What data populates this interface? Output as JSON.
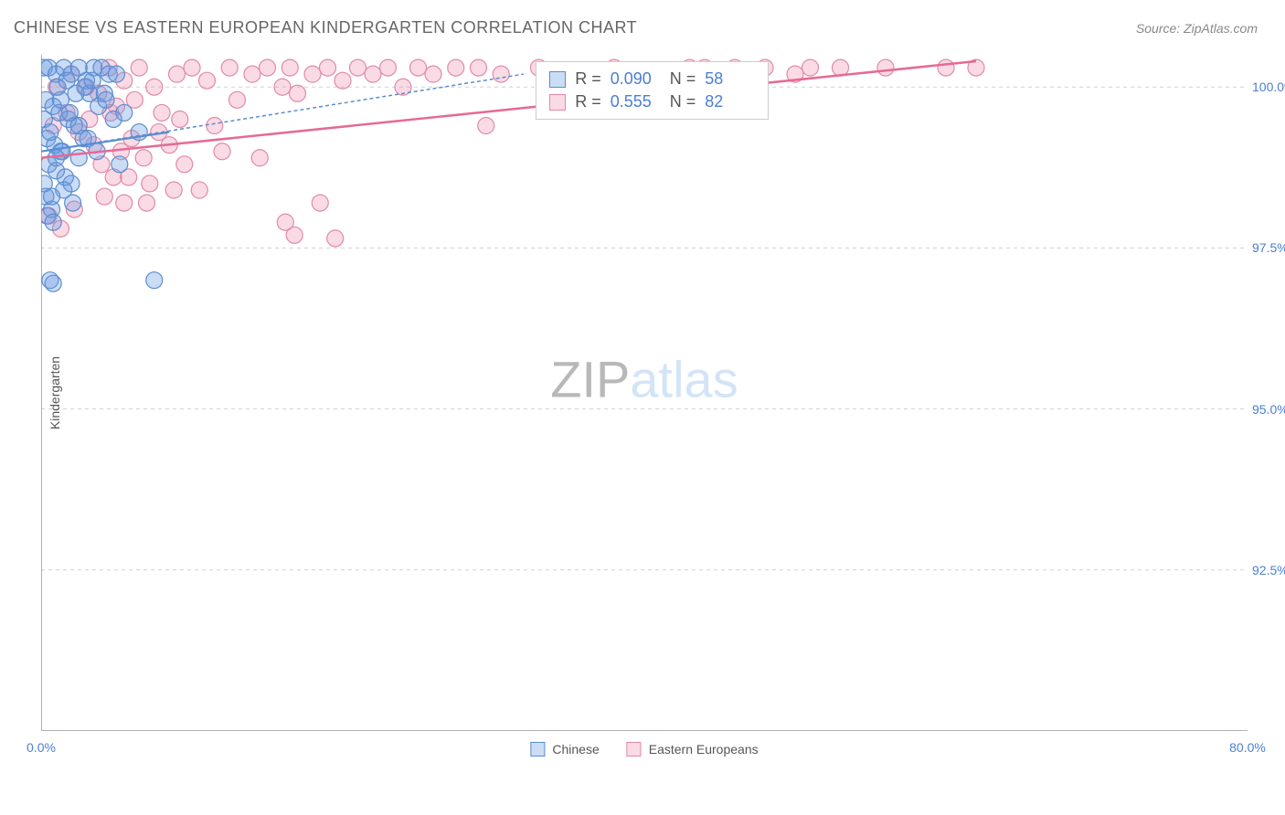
{
  "title": "CHINESE VS EASTERN EUROPEAN KINDERGARTEN CORRELATION CHART",
  "source": "Source: ZipAtlas.com",
  "watermark_zip": "ZIP",
  "watermark_atlas": "atlas",
  "chart": {
    "type": "scatter",
    "ylabel": "Kindergarten",
    "xlim": [
      0,
      80
    ],
    "ylim": [
      90,
      100.5
    ],
    "x_ticks": [
      0,
      10,
      20,
      30,
      40,
      50,
      60,
      70,
      80
    ],
    "x_tick_labels": [
      "0.0%",
      "",
      "",
      "",
      "",
      "",
      "",
      "",
      "80.0%"
    ],
    "y_ticks": [
      92.5,
      95.0,
      97.5,
      100.0
    ],
    "y_tick_labels": [
      "92.5%",
      "95.0%",
      "97.5%",
      "100.0%"
    ],
    "background_color": "#ffffff",
    "grid_color": "#d0d0d0",
    "axis_color": "#999999",
    "marker_radius": 9,
    "marker_stroke_width": 1.2,
    "series": [
      {
        "name": "Chinese",
        "color_fill": "rgba(105,155,225,0.35)",
        "color_stroke": "#5a8dd0",
        "r_value": "0.090",
        "n_value": "58",
        "trend": {
          "x1": 0,
          "y1": 99.0,
          "x2": 32,
          "y2": 100.2,
          "dash": "4 3",
          "stroke": "#5a8dd0",
          "width": 1.5
        },
        "trend_solid": {
          "x1": 0,
          "y1": 99.0,
          "x2": 8.5,
          "y2": 99.3,
          "stroke": "#5a8dd0",
          "width": 2.2
        },
        "points": [
          [
            0.2,
            100.3
          ],
          [
            0.5,
            100.3
          ],
          [
            1.0,
            100.2
          ],
          [
            1.5,
            100.3
          ],
          [
            2.0,
            100.2
          ],
          [
            2.5,
            100.3
          ],
          [
            3.0,
            100.1
          ],
          [
            3.5,
            100.3
          ],
          [
            4.0,
            100.3
          ],
          [
            4.5,
            100.2
          ],
          [
            5.0,
            100.2
          ],
          [
            0.3,
            99.8
          ],
          [
            0.8,
            99.7
          ],
          [
            1.2,
            99.6
          ],
          [
            1.8,
            99.5
          ],
          [
            2.2,
            99.4
          ],
          [
            0.4,
            99.2
          ],
          [
            0.9,
            99.1
          ],
          [
            1.4,
            99.0
          ],
          [
            0.5,
            98.8
          ],
          [
            1.0,
            98.7
          ],
          [
            1.6,
            98.6
          ],
          [
            2.0,
            98.5
          ],
          [
            0.3,
            98.3
          ],
          [
            0.7,
            98.1
          ],
          [
            5.5,
            99.6
          ],
          [
            6.5,
            99.3
          ],
          [
            1.3,
            99.0
          ],
          [
            2.5,
            98.9
          ],
          [
            3.2,
            99.9
          ],
          [
            3.8,
            99.7
          ],
          [
            0.6,
            97.0
          ],
          [
            0.8,
            96.95
          ],
          [
            7.5,
            97.0
          ],
          [
            4.2,
            99.9
          ],
          [
            4.8,
            99.5
          ],
          [
            5.2,
            98.8
          ],
          [
            2.8,
            99.2
          ],
          [
            1.1,
            100.0
          ],
          [
            1.7,
            100.1
          ],
          [
            2.3,
            99.9
          ],
          [
            2.9,
            100.0
          ],
          [
            3.4,
            100.1
          ],
          [
            0.2,
            99.5
          ],
          [
            0.6,
            99.3
          ],
          [
            1.0,
            98.9
          ],
          [
            1.5,
            98.4
          ],
          [
            2.1,
            98.2
          ],
          [
            0.4,
            98.0
          ],
          [
            0.8,
            97.9
          ],
          [
            1.3,
            99.8
          ],
          [
            1.9,
            99.6
          ],
          [
            2.5,
            99.4
          ],
          [
            3.1,
            99.2
          ],
          [
            3.7,
            99.0
          ],
          [
            4.3,
            99.8
          ],
          [
            0.2,
            98.5
          ],
          [
            0.7,
            98.3
          ]
        ]
      },
      {
        "name": "Eastern Europeans",
        "color_fill": "rgba(240,150,180,0.35)",
        "color_stroke": "#e08aa8",
        "r_value": "0.555",
        "n_value": "82",
        "trend": {
          "x1": 0,
          "y1": 98.9,
          "x2": 62,
          "y2": 100.4,
          "dash": "none",
          "stroke": "#e56a95",
          "width": 2.5
        },
        "points": [
          [
            1.0,
            100.0
          ],
          [
            2.0,
            100.2
          ],
          [
            3.0,
            100.0
          ],
          [
            4.5,
            100.3
          ],
          [
            5.0,
            99.7
          ],
          [
            5.5,
            100.1
          ],
          [
            6.5,
            100.3
          ],
          [
            7.5,
            100.0
          ],
          [
            8.0,
            99.6
          ],
          [
            9.0,
            100.2
          ],
          [
            10.0,
            100.3
          ],
          [
            11.0,
            100.1
          ],
          [
            11.5,
            99.4
          ],
          [
            12.5,
            100.3
          ],
          [
            13.0,
            99.8
          ],
          [
            14.0,
            100.2
          ],
          [
            15.0,
            100.3
          ],
          [
            16.0,
            100.0
          ],
          [
            16.5,
            100.3
          ],
          [
            17.0,
            99.9
          ],
          [
            18.0,
            100.2
          ],
          [
            19.0,
            100.3
          ],
          [
            20.0,
            100.1
          ],
          [
            21.0,
            100.3
          ],
          [
            22.0,
            100.2
          ],
          [
            23.0,
            100.3
          ],
          [
            24.0,
            100.0
          ],
          [
            25.0,
            100.3
          ],
          [
            26.0,
            100.2
          ],
          [
            27.5,
            100.3
          ],
          [
            29.0,
            100.3
          ],
          [
            30.5,
            100.2
          ],
          [
            33.0,
            100.3
          ],
          [
            35.0,
            100.2
          ],
          [
            38.0,
            100.3
          ],
          [
            40.0,
            100.0
          ],
          [
            42.0,
            100.1
          ],
          [
            43.0,
            100.3
          ],
          [
            44.0,
            100.3
          ],
          [
            45.0,
            100.2
          ],
          [
            46.0,
            100.3
          ],
          [
            48.0,
            100.3
          ],
          [
            50.0,
            100.2
          ],
          [
            51.0,
            100.3
          ],
          [
            53.0,
            100.3
          ],
          [
            56.0,
            100.3
          ],
          [
            60.0,
            100.3
          ],
          [
            62.0,
            100.3
          ],
          [
            2.5,
            99.3
          ],
          [
            3.5,
            99.1
          ],
          [
            4.0,
            98.8
          ],
          [
            4.8,
            98.6
          ],
          [
            5.3,
            99.0
          ],
          [
            6.0,
            99.2
          ],
          [
            6.8,
            98.9
          ],
          [
            7.2,
            98.5
          ],
          [
            8.5,
            99.1
          ],
          [
            9.5,
            98.8
          ],
          [
            10.5,
            98.4
          ],
          [
            12.0,
            99.0
          ],
          [
            4.2,
            98.3
          ],
          [
            5.8,
            98.6
          ],
          [
            7.0,
            98.2
          ],
          [
            8.8,
            98.4
          ],
          [
            3.2,
            99.5
          ],
          [
            4.6,
            99.6
          ],
          [
            6.2,
            99.8
          ],
          [
            14.5,
            98.9
          ],
          [
            16.2,
            97.9
          ],
          [
            18.5,
            98.2
          ],
          [
            29.5,
            99.4
          ],
          [
            16.8,
            97.7
          ],
          [
            19.5,
            97.65
          ],
          [
            0.5,
            98.0
          ],
          [
            1.3,
            97.8
          ],
          [
            2.2,
            98.1
          ],
          [
            0.8,
            99.4
          ],
          [
            1.7,
            99.6
          ],
          [
            3.8,
            99.9
          ],
          [
            5.5,
            98.2
          ],
          [
            7.8,
            99.3
          ],
          [
            9.2,
            99.5
          ]
        ]
      }
    ],
    "stats_box": {
      "left_pct": 41,
      "top_pct": 1,
      "r_label": "R =",
      "n_label": "N ="
    },
    "legend_bottom": [
      {
        "label": "Chinese",
        "fill": "rgba(105,155,225,0.35)",
        "stroke": "#5a8dd0"
      },
      {
        "label": "Eastern Europeans",
        "fill": "rgba(240,150,180,0.35)",
        "stroke": "#e08aa8"
      }
    ]
  }
}
